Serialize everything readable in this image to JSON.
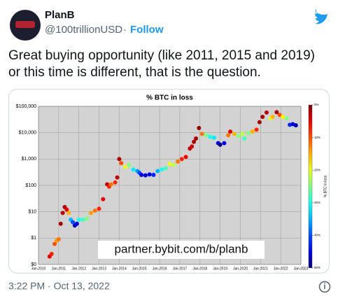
{
  "tweet": {
    "name": "PlanB",
    "handle": "@100trillionUSD",
    "separator": "·",
    "follow": "Follow",
    "text": "Great buying opportunity (like 2011, 2015 and 2019) or this time is different, that is the question.",
    "timestamp": "3:22 PM · Oct 13, 2022"
  },
  "chart_data": {
    "type": "scatter",
    "title": "% BTC in loss",
    "annotation": "partner.bybit.com/b/planb",
    "log_y": true,
    "grid": true,
    "colormap": "jet_r",
    "xlim": [
      2010,
      2023
    ],
    "xticks": [
      {
        "value": 2010,
        "label": "Jan-2010"
      },
      {
        "value": 2011,
        "label": "Jan-2011"
      },
      {
        "value": 2012,
        "label": "Jan-2012"
      },
      {
        "value": 2013,
        "label": "Jan-2013"
      },
      {
        "value": 2014,
        "label": "Jan-2014"
      },
      {
        "value": 2015,
        "label": "Jan-2015"
      },
      {
        "value": 2016,
        "label": "Jan-2016"
      },
      {
        "value": 2017,
        "label": "Jan-2017"
      },
      {
        "value": 2018,
        "label": "Jan-2018"
      },
      {
        "value": 2019,
        "label": "Jan-2019"
      },
      {
        "value": 2020,
        "label": "Jan-2020"
      },
      {
        "value": 2021,
        "label": "Jan-2021"
      },
      {
        "value": 2022,
        "label": "Jan-2022"
      },
      {
        "value": 2023,
        "label": "Jan-2023"
      }
    ],
    "ylim": [
      0.1,
      100000
    ],
    "yticks": [
      {
        "value": 0.1,
        "label": "$0"
      },
      {
        "value": 1,
        "label": "$1"
      },
      {
        "value": 10,
        "label": "$10"
      },
      {
        "value": 100,
        "label": "$100"
      },
      {
        "value": 1000,
        "label": "$1,000"
      },
      {
        "value": 10000,
        "label": "$10,000"
      },
      {
        "value": 100000,
        "label": "$100,000"
      }
    ],
    "colorbar": {
      "label": "% BTC in loss",
      "lim": [
        0,
        50
      ],
      "ticks": [
        {
          "value": 0,
          "label": "0%"
        },
        {
          "value": 10,
          "label": "10%"
        },
        {
          "value": 20,
          "label": "20%"
        },
        {
          "value": 30,
          "label": "30%"
        },
        {
          "value": 40,
          "label": "40%"
        },
        {
          "value": 50,
          "label": "50%"
        }
      ]
    },
    "x": [
      2010.55,
      2010.65,
      2010.8,
      2010.9,
      2011.0,
      2011.1,
      2011.2,
      2011.3,
      2011.4,
      2011.5,
      2011.6,
      2011.7,
      2011.8,
      2011.9,
      2012.0,
      2012.2,
      2012.4,
      2012.6,
      2012.8,
      2013.0,
      2013.2,
      2013.4,
      2013.5,
      2013.6,
      2013.8,
      2013.9,
      2014.0,
      2014.1,
      2014.3,
      2014.5,
      2014.7,
      2014.9,
      2015.0,
      2015.1,
      2015.3,
      2015.5,
      2015.7,
      2015.9,
      2016.1,
      2016.3,
      2016.5,
      2016.7,
      2016.9,
      2017.1,
      2017.3,
      2017.5,
      2017.6,
      2017.7,
      2017.8,
      2017.95,
      2018.1,
      2018.3,
      2018.5,
      2018.7,
      2018.9,
      2019.0,
      2019.2,
      2019.4,
      2019.5,
      2019.7,
      2019.9,
      2020.1,
      2020.2,
      2020.4,
      2020.6,
      2020.8,
      2020.95,
      2021.1,
      2021.3,
      2021.5,
      2021.6,
      2021.8,
      2021.95,
      2022.1,
      2022.3,
      2022.45,
      2022.6,
      2022.75
    ],
    "values": [
      0.2,
      0.25,
      0.6,
      0.8,
      0.9,
      3.5,
      9,
      15,
      12,
      9,
      5,
      4,
      3,
      3.5,
      5,
      5,
      5.5,
      9,
      11,
      13,
      30,
      110,
      90,
      110,
      130,
      200,
      1000,
      700,
      500,
      600,
      400,
      350,
      300,
      250,
      240,
      260,
      250,
      350,
      400,
      450,
      650,
      600,
      800,
      1000,
      1200,
      2500,
      3000,
      4500,
      6000,
      15000,
      9000,
      8000,
      7000,
      6500,
      4000,
      3500,
      4000,
      8000,
      11000,
      9000,
      7500,
      9000,
      6000,
      9500,
      11000,
      13000,
      25000,
      40000,
      58000,
      35000,
      40000,
      60000,
      47000,
      40000,
      35000,
      20000,
      21000,
      19000
    ],
    "loss": [
      5,
      8,
      10,
      14,
      12,
      2,
      3,
      2,
      5,
      15,
      35,
      40,
      48,
      45,
      30,
      28,
      25,
      14,
      12,
      8,
      5,
      3,
      8,
      12,
      8,
      3,
      2,
      10,
      20,
      25,
      32,
      36,
      40,
      44,
      46,
      45,
      42,
      35,
      30,
      28,
      20,
      22,
      12,
      8,
      6,
      3,
      4,
      2,
      2,
      1,
      12,
      25,
      30,
      32,
      45,
      50,
      45,
      12,
      5,
      15,
      25,
      22,
      28,
      25,
      15,
      8,
      2,
      2,
      3,
      20,
      15,
      2,
      10,
      18,
      25,
      42,
      45,
      48
    ]
  }
}
